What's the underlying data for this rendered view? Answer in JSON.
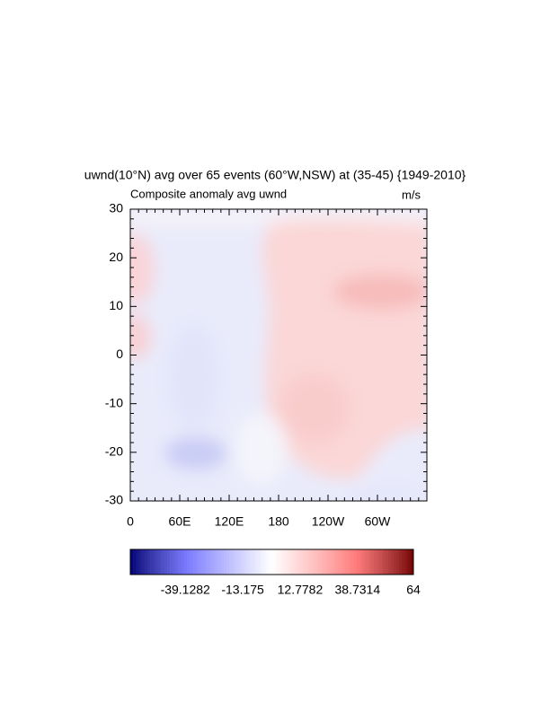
{
  "chart_data": {
    "type": "contour",
    "title": "uwnd(10°N) avg over 65 events (60°W,NSW) at (35-45) {1949-2010}",
    "subtitle": "Composite anomaly avg uwnd",
    "units": "m/s",
    "xlim": [
      0,
      360
    ],
    "xticks": [
      0,
      {
        "value": 60,
        "label": "60E"
      },
      {
        "value": 120,
        "label": "120E"
      },
      180,
      {
        "value": 240,
        "label": "120W"
      },
      {
        "value": 300,
        "label": "60W"
      }
    ],
    "ylim": [
      -30,
      30
    ],
    "yticks": [
      -30,
      -20,
      -10,
      0,
      10,
      20,
      30
    ],
    "colorbar": {
      "lim": [
        -64,
        64
      ],
      "ticks": [
        -39.1282,
        -13.175,
        12.7782,
        38.7314,
        64
      ]
    }
  }
}
